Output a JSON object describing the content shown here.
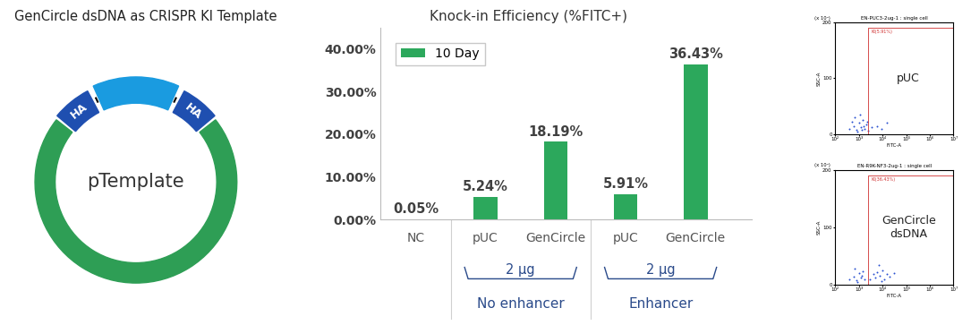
{
  "diagram": {
    "title": "GenCircle dsDNA as CRISPR KI Template",
    "plasmid": "pTemplate",
    "arm_labels": [
      "HA",
      "HA"
    ]
  },
  "chart_data": {
    "type": "bar",
    "title": "Knock-in Efficiency (%FITC+)",
    "categories": [
      "NC",
      "pUC",
      "GenCircle",
      "pUC",
      "GenCircle"
    ],
    "series": [
      {
        "name": "10 Day",
        "color": "#2ca85c",
        "values": [
          0.05,
          5.24,
          18.19,
          5.91,
          36.43
        ],
        "value_labels": [
          "0.05%",
          "5.24%",
          "18.19%",
          "5.91%",
          "36.43%"
        ]
      }
    ],
    "ylim": [
      0,
      45
    ],
    "yticks": [
      {
        "value": 0,
        "label": "0.00%"
      },
      {
        "value": 10,
        "label": "10.00%"
      },
      {
        "value": 20,
        "label": "20.00%"
      },
      {
        "value": 30,
        "label": "30.00%"
      },
      {
        "value": 40,
        "label": "40.00%"
      }
    ],
    "grid": false,
    "legend": "upper left",
    "data_labels": true,
    "groups": [
      {
        "amount": "2 µg",
        "label": "No enhancer",
        "categories": [
          1,
          2
        ]
      },
      {
        "amount": "2 µg",
        "label": "Enhancer",
        "categories": [
          3,
          4
        ]
      }
    ]
  },
  "flow_plots": [
    {
      "title": "EN-PUC3-2ug-1 : single cell",
      "sample": "pUC",
      "xlabel": "FITC-A",
      "ylabel": "SSC-A",
      "y_multiplier": "(x 10⁴)",
      "log": "x",
      "xlim": [
        100,
        10000000
      ],
      "ylim": [
        0,
        200
      ],
      "xticks": [
        {
          "value": 100,
          "label": "10²"
        },
        {
          "value": 1000,
          "label": "10³"
        },
        {
          "value": 10000,
          "label": "10⁴"
        },
        {
          "value": 100000,
          "label": "10⁵"
        },
        {
          "value": 1000000,
          "label": "10⁶"
        },
        {
          "value": 10000000,
          "label": "10⁷"
        }
      ],
      "yticks": [
        0,
        100,
        200
      ],
      "gate": {
        "label": "KI(5.91%)",
        "x": [
          2500,
          10000000
        ],
        "y": [
          0,
          190
        ]
      },
      "events": [
        [
          400,
          10
        ],
        [
          600,
          15
        ],
        [
          800,
          8
        ],
        [
          1000,
          20
        ],
        [
          1200,
          12
        ],
        [
          1500,
          25
        ],
        [
          1800,
          10
        ],
        [
          2000,
          18
        ],
        [
          700,
          30
        ],
        [
          900,
          5
        ],
        [
          1100,
          35
        ],
        [
          1300,
          8
        ],
        [
          1600,
          14
        ],
        [
          2200,
          22
        ],
        [
          500,
          22
        ],
        [
          3500,
          12
        ],
        [
          6000,
          15
        ],
        [
          9000,
          10
        ],
        [
          15000,
          20
        ],
        [
          2500,
          6
        ]
      ]
    },
    {
      "title": "EN-R9K-NF3-2ug-1 : single cell",
      "sample": "GenCircle\ndsDNA",
      "xlabel": "FITC-A",
      "ylabel": "SSC-A",
      "y_multiplier": "(x 10⁴)",
      "log": "x",
      "xlim": [
        100,
        10000000
      ],
      "ylim": [
        0,
        200
      ],
      "xticks": [
        {
          "value": 100,
          "label": "10²"
        },
        {
          "value": 1000,
          "label": "10³"
        },
        {
          "value": 10000,
          "label": "10⁴"
        },
        {
          "value": 100000,
          "label": "10⁵"
        },
        {
          "value": 1000000,
          "label": "10⁶"
        },
        {
          "value": 10000000,
          "label": "10⁷"
        }
      ],
      "yticks": [
        0,
        100,
        200
      ],
      "gate": {
        "label": "KI(36.43%)",
        "x": [
          2500,
          10000000
        ],
        "y": [
          0,
          190
        ]
      },
      "events": [
        [
          400,
          10
        ],
        [
          600,
          14
        ],
        [
          800,
          8
        ],
        [
          1000,
          20
        ],
        [
          1200,
          12
        ],
        [
          1500,
          24
        ],
        [
          1800,
          10
        ],
        [
          700,
          28
        ],
        [
          900,
          5
        ],
        [
          1300,
          16
        ],
        [
          3000,
          10
        ],
        [
          4000,
          18
        ],
        [
          5000,
          12
        ],
        [
          6000,
          22
        ],
        [
          8000,
          15
        ],
        [
          10000,
          25
        ],
        [
          12000,
          10
        ],
        [
          15000,
          18
        ],
        [
          20000,
          14
        ],
        [
          30000,
          20
        ],
        [
          7000,
          35
        ],
        [
          9000,
          6
        ]
      ]
    }
  ]
}
